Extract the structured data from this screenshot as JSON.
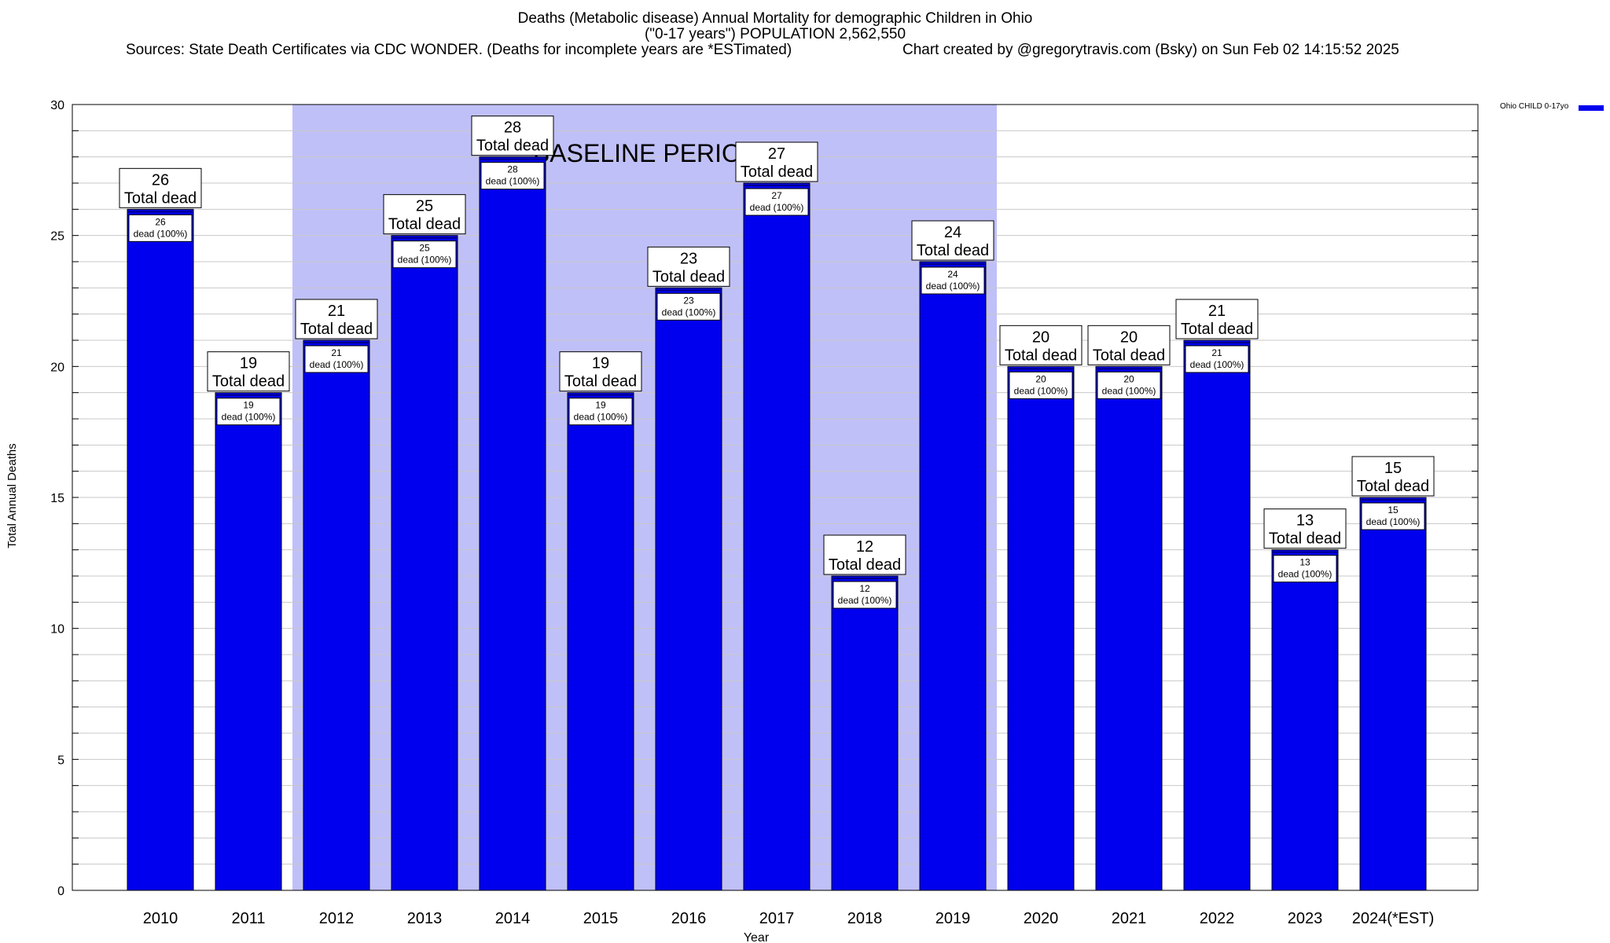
{
  "colors": {
    "bar": "#0000ee",
    "baseline_band": "#c0c0f8",
    "grid": "#c8c8c8"
  },
  "header": {
    "title": "Deaths (Metabolic disease) Annual Mortality for demographic Children in Ohio",
    "subtitle": "(\"0-17 years\") POPULATION 2,562,550",
    "sources": "Sources: State Death Certificates via CDC WONDER. (Deaths for incomplete years are *ESTimated)",
    "credit": "Chart created by @gregorytravis.com (Bsky) on Sun Feb 02 14:15:52 2025"
  },
  "chart_data": {
    "type": "bar",
    "title": "Deaths (Metabolic disease) Annual Mortality for demographic Children in Ohio",
    "xlabel": "Year",
    "ylabel": "Total Annual Deaths",
    "ylim": [
      0,
      30
    ],
    "yticks": [
      0,
      5,
      10,
      15,
      20,
      25,
      30
    ],
    "grid": true,
    "legend_placement": "top-right",
    "categories": [
      "2010",
      "2011",
      "2012",
      "2013",
      "2014",
      "2015",
      "2016",
      "2017",
      "2018",
      "2019",
      "2020",
      "2021",
      "2022",
      "2023",
      "2024(*EST)"
    ],
    "series": [
      {
        "name": "Ohio CHILD 0-17yo",
        "values": [
          26,
          19,
          21,
          25,
          28,
          19,
          23,
          27,
          12,
          24,
          20,
          20,
          21,
          13,
          15
        ]
      }
    ],
    "total_label_suffix": "Total dead",
    "inner_label_suffix": "dead (100%)",
    "annotation": {
      "text": "BASELINE PERIOD",
      "from": "2012",
      "to": "2019"
    }
  }
}
